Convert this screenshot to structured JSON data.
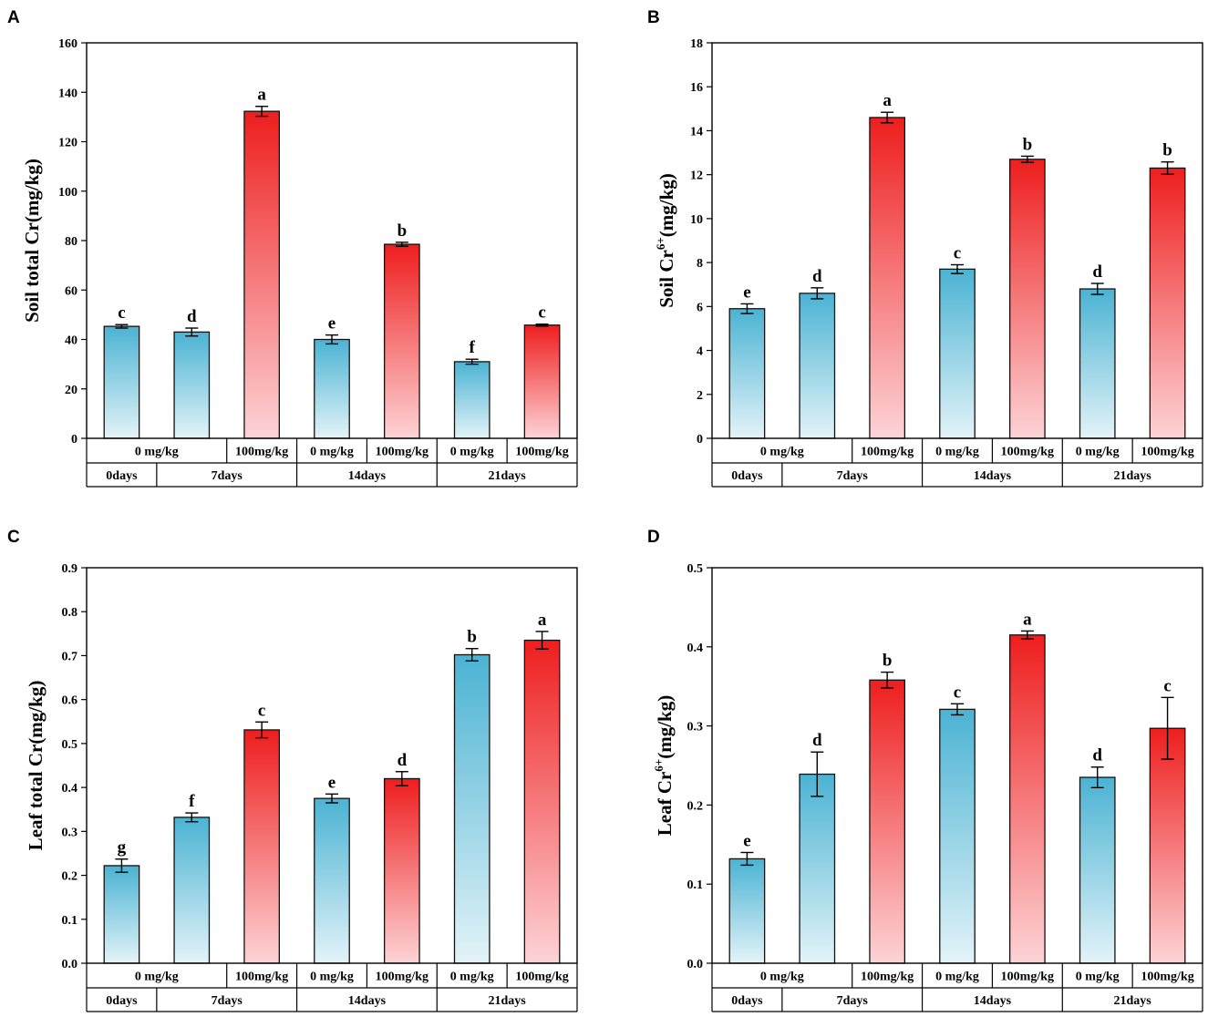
{
  "colors": {
    "control_top": "#4bb3d3",
    "control_bottom": "#e3f3f8",
    "treatment_top": "#ee1e1e",
    "treatment_bottom": "#fdd3d6",
    "axis": "#000000"
  },
  "chart_data": [
    {
      "id": "A",
      "type": "bar",
      "panel_label": "A",
      "ylabel": "Soil total Cr(mg/kg)",
      "ylabel_main": "Soil total Cr(mg/kg)",
      "ylabel_sup": "",
      "ylabel_tail": "",
      "ylim": [
        0,
        160
      ],
      "yticks": [
        0,
        20,
        40,
        60,
        80,
        100,
        120,
        140,
        160
      ],
      "decimals": 0,
      "concentration_labels": [
        "0 mg/kg",
        "100mg/kg",
        "0 mg/kg",
        "100mg/kg",
        "0 mg/kg",
        "100mg/kg"
      ],
      "time_labels": [
        "0days",
        "7days",
        "14days",
        "21days"
      ],
      "categories": [
        "0days 0 mg/kg",
        "7days 0 mg/kg",
        "7days 100mg/kg",
        "14days 0 mg/kg",
        "14days 100mg/kg",
        "21days 0 mg/kg",
        "21days 100mg/kg"
      ],
      "groups": [
        "control",
        "control",
        "treatment",
        "control",
        "treatment",
        "control",
        "treatment"
      ],
      "values": [
        45.3,
        43.0,
        132.3,
        40.0,
        78.5,
        31.0,
        45.8
      ],
      "errors": [
        0.7,
        1.6,
        2.0,
        1.8,
        0.8,
        1.0,
        0.4
      ],
      "significance": [
        "c",
        "d",
        "a",
        "e",
        "b",
        "f",
        "c"
      ]
    },
    {
      "id": "B",
      "type": "bar",
      "panel_label": "B",
      "ylabel": "Soil Cr6+(mg/kg)",
      "ylabel_main": "Soil Cr",
      "ylabel_sup": "6+",
      "ylabel_tail": "(mg/kg)",
      "ylim": [
        0,
        18
      ],
      "yticks": [
        0,
        2,
        4,
        6,
        8,
        10,
        12,
        14,
        16,
        18
      ],
      "decimals": 0,
      "concentration_labels": [
        "0 mg/kg",
        "100mg/kg",
        "0 mg/kg",
        "100mg/kg",
        "0 mg/kg",
        "100mg/kg"
      ],
      "time_labels": [
        "0days",
        "7days",
        "14days",
        "21days"
      ],
      "categories": [
        "0days 0 mg/kg",
        "7days 0 mg/kg",
        "7days 100mg/kg",
        "14days 0 mg/kg",
        "14days 100mg/kg",
        "21days 0 mg/kg",
        "21days 100mg/kg"
      ],
      "groups": [
        "control",
        "control",
        "treatment",
        "control",
        "treatment",
        "control",
        "treatment"
      ],
      "values": [
        5.9,
        6.6,
        14.6,
        7.7,
        12.7,
        6.8,
        12.3
      ],
      "errors": [
        0.22,
        0.25,
        0.24,
        0.2,
        0.14,
        0.25,
        0.28
      ],
      "significance": [
        "e",
        "d",
        "a",
        "c",
        "b",
        "d",
        "b"
      ]
    },
    {
      "id": "C",
      "type": "bar",
      "panel_label": "C",
      "ylabel": "Leaf total Cr(mg/kg)",
      "ylabel_main": "Leaf total Cr(mg/kg)",
      "ylabel_sup": "",
      "ylabel_tail": "",
      "ylim": [
        0,
        0.9
      ],
      "yticks": [
        0,
        0.1,
        0.2,
        0.3,
        0.4,
        0.5,
        0.6,
        0.7,
        0.8,
        0.9
      ],
      "decimals": 1,
      "concentration_labels": [
        "0 mg/kg",
        "100mg/kg",
        "0 mg/kg",
        "100mg/kg",
        "0 mg/kg",
        "100mg/kg"
      ],
      "time_labels": [
        "0days",
        "7days",
        "14days",
        "21days"
      ],
      "categories": [
        "0days 0 mg/kg",
        "7days 0 mg/kg",
        "7days 100mg/kg",
        "14days 0 mg/kg",
        "14days 100mg/kg",
        "21days 0 mg/kg",
        "21days 100mg/kg"
      ],
      "groups": [
        "control",
        "control",
        "treatment",
        "control",
        "treatment",
        "control",
        "treatment"
      ],
      "values": [
        0.222,
        0.332,
        0.531,
        0.375,
        0.42,
        0.702,
        0.735
      ],
      "errors": [
        0.015,
        0.01,
        0.018,
        0.01,
        0.016,
        0.014,
        0.02
      ],
      "significance": [
        "g",
        "f",
        "c",
        "e",
        "d",
        "b",
        "a"
      ]
    },
    {
      "id": "D",
      "type": "bar",
      "panel_label": "D",
      "ylabel": "Leaf Cr6+(mg/kg)",
      "ylabel_main": "Leaf Cr",
      "ylabel_sup": "6+",
      "ylabel_tail": "(mg/kg)",
      "ylim": [
        0,
        0.5
      ],
      "yticks": [
        0,
        0.1,
        0.2,
        0.3,
        0.4,
        0.5
      ],
      "decimals": 1,
      "concentration_labels": [
        "0 mg/kg",
        "100mg/kg",
        "0 mg/kg",
        "100mg/kg",
        "0 mg/kg",
        "100mg/kg"
      ],
      "time_labels": [
        "0days",
        "7days",
        "14days",
        "21days"
      ],
      "categories": [
        "0days 0 mg/kg",
        "7days 0 mg/kg",
        "7days 100mg/kg",
        "14days 0 mg/kg",
        "14days 100mg/kg",
        "21days 0 mg/kg",
        "21days 100mg/kg"
      ],
      "groups": [
        "control",
        "control",
        "treatment",
        "control",
        "treatment",
        "control",
        "treatment"
      ],
      "values": [
        0.132,
        0.239,
        0.358,
        0.321,
        0.415,
        0.235,
        0.297
      ],
      "errors": [
        0.008,
        0.028,
        0.01,
        0.007,
        0.005,
        0.013,
        0.039
      ],
      "significance": [
        "e",
        "d",
        "b",
        "c",
        "a",
        "d",
        "c"
      ]
    }
  ]
}
